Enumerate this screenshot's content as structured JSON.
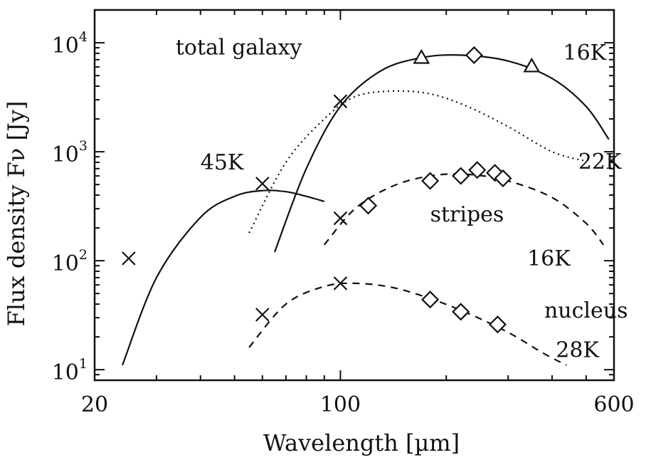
{
  "chart_data": {
    "type": "scatter",
    "title": "",
    "xlabel": "Wavelength [µm]",
    "ylabel": "Flux density Fν [Jy]",
    "xscale": "log",
    "yscale": "log",
    "xlim": [
      20,
      600
    ],
    "ylim": [
      8,
      20000
    ],
    "xticks": [
      {
        "value": 20,
        "label": "20"
      },
      {
        "value": 100,
        "label": "100"
      },
      {
        "value": 600,
        "label": "600"
      }
    ],
    "yticks": [
      {
        "value": 10,
        "base": "10",
        "exp": "1"
      },
      {
        "value": 100,
        "base": "10",
        "exp": "2"
      },
      {
        "value": 1000,
        "base": "10",
        "exp": "3"
      },
      {
        "value": 10000,
        "base": "10",
        "exp": "4"
      }
    ],
    "grid": false,
    "markers": {
      "crosses": [
        {
          "x": 25,
          "y": 105
        },
        {
          "x": 60,
          "y": 510
        },
        {
          "x": 100,
          "y": 2900
        },
        {
          "x": 100,
          "y": 245
        },
        {
          "x": 60,
          "y": 32
        },
        {
          "x": 100,
          "y": 62
        }
      ],
      "triangles": [
        {
          "x": 170,
          "y": 7300
        },
        {
          "x": 350,
          "y": 6100
        }
      ],
      "diamonds": [
        {
          "x": 240,
          "y": 7700
        },
        {
          "x": 120,
          "y": 320
        },
        {
          "x": 180,
          "y": 540
        },
        {
          "x": 220,
          "y": 600
        },
        {
          "x": 245,
          "y": 680
        },
        {
          "x": 275,
          "y": 640
        },
        {
          "x": 290,
          "y": 570
        },
        {
          "x": 180,
          "y": 44
        },
        {
          "x": 220,
          "y": 34
        },
        {
          "x": 280,
          "y": 26
        }
      ]
    },
    "series": [
      {
        "style": "solid",
        "x": [
          24,
          30,
          40,
          50,
          60,
          70,
          80,
          90
        ],
        "y": [
          11,
          70,
          250,
          390,
          440,
          430,
          390,
          350
        ]
      },
      {
        "style": "solid",
        "x": [
          65,
          80,
          100,
          130,
          170,
          220,
          300,
          400,
          500,
          580
        ],
        "y": [
          120,
          700,
          2600,
          5500,
          7300,
          7700,
          6800,
          4700,
          2600,
          1300
        ]
      },
      {
        "style": "dotted",
        "x": [
          55,
          70,
          90,
          110,
          140,
          180,
          230,
          300,
          400,
          500
        ],
        "y": [
          180,
          800,
          2000,
          3200,
          3600,
          3400,
          2600,
          1700,
          1000,
          820
        ]
      },
      {
        "style": "dashed",
        "x": [
          90,
          110,
          140,
          180,
          230,
          300,
          400,
          500,
          560
        ],
        "y": [
          140,
          300,
          480,
          600,
          620,
          540,
          380,
          220,
          140
        ]
      },
      {
        "style": "dashed",
        "x": [
          55,
          70,
          90,
          110,
          140,
          180,
          230,
          300,
          380,
          440
        ],
        "y": [
          16,
          40,
          58,
          62,
          57,
          45,
          33,
          22,
          14,
          11
        ]
      }
    ],
    "annotations": [
      {
        "text": "total galaxy",
        "x": 34,
        "y": 7800,
        "anchor": "start"
      },
      {
        "text": "16K",
        "x": 430,
        "y": 7000,
        "anchor": "start"
      },
      {
        "text": "45K",
        "x": 40,
        "y": 690,
        "anchor": "start"
      },
      {
        "text": "22K",
        "x": 475,
        "y": 700,
        "anchor": "start"
      },
      {
        "text": "stripes",
        "x": 180,
        "y": 230,
        "anchor": "start"
      },
      {
        "text": "16K",
        "x": 340,
        "y": 90,
        "anchor": "start"
      },
      {
        "text": "nucleus",
        "x": 380,
        "y": 30,
        "anchor": "start"
      },
      {
        "text": "28K",
        "x": 410,
        "y": 13,
        "anchor": "start"
      }
    ]
  }
}
